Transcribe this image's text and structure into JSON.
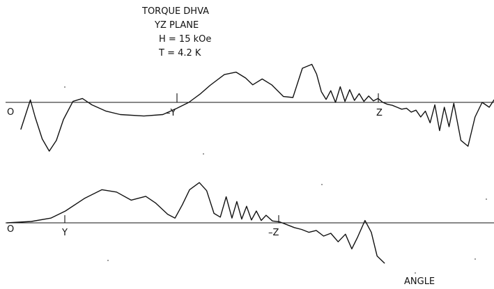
{
  "chart_data": {
    "type": "line",
    "title_lines": [
      "TORQUE DHVA",
      "YZ  PLANE",
      "H = 15 kOe",
      "T = 4.2 K"
    ],
    "xlabel": "ANGLE",
    "ylabel": "",
    "grid": false,
    "panels": [
      {
        "name": "",
        "tick_labels": [
          "O",
          "–Y",
          "Z"
        ],
        "series": [
          {
            "name": "",
            "points": [
              [
                0.0,
                -0.55
              ],
              [
                0.02,
                0.05
              ],
              [
                0.03,
                -0.3
              ],
              [
                0.045,
                -0.75
              ],
              [
                0.06,
                -1.0
              ],
              [
                0.075,
                -0.78
              ],
              [
                0.09,
                -0.35
              ],
              [
                0.11,
                0.02
              ],
              [
                0.13,
                0.08
              ],
              [
                0.15,
                -0.05
              ],
              [
                0.18,
                -0.18
              ],
              [
                0.21,
                -0.25
              ],
              [
                0.26,
                -0.28
              ],
              [
                0.3,
                -0.25
              ],
              [
                0.33,
                -0.12
              ],
              [
                0.355,
                0.0
              ],
              [
                0.38,
                0.18
              ],
              [
                0.4,
                0.35
              ],
              [
                0.43,
                0.57
              ],
              [
                0.455,
                0.62
              ],
              [
                0.475,
                0.5
              ],
              [
                0.49,
                0.36
              ],
              [
                0.51,
                0.48
              ],
              [
                0.53,
                0.36
              ],
              [
                0.555,
                0.12
              ],
              [
                0.575,
                0.1
              ],
              [
                0.595,
                0.7
              ],
              [
                0.615,
                0.78
              ],
              [
                0.625,
                0.58
              ],
              [
                0.635,
                0.22
              ],
              [
                0.645,
                0.06
              ],
              [
                0.655,
                0.24
              ],
              [
                0.665,
                0.0
              ],
              [
                0.675,
                0.32
              ],
              [
                0.685,
                0.02
              ],
              [
                0.695,
                0.26
              ],
              [
                0.705,
                0.04
              ],
              [
                0.715,
                0.18
              ],
              [
                0.725,
                0.02
              ],
              [
                0.735,
                0.13
              ],
              [
                0.745,
                0.03
              ],
              [
                0.755,
                0.08
              ],
              [
                0.765,
                0.0
              ],
              [
                0.775,
                -0.04
              ],
              [
                0.785,
                -0.06
              ],
              [
                0.795,
                -0.1
              ],
              [
                0.805,
                -0.14
              ],
              [
                0.815,
                -0.12
              ],
              [
                0.825,
                -0.2
              ],
              [
                0.835,
                -0.16
              ],
              [
                0.845,
                -0.3
              ],
              [
                0.855,
                -0.18
              ],
              [
                0.865,
                -0.42
              ],
              [
                0.875,
                -0.05
              ],
              [
                0.885,
                -0.58
              ],
              [
                0.895,
                -0.1
              ],
              [
                0.905,
                -0.5
              ],
              [
                0.915,
                -0.02
              ],
              [
                0.93,
                -0.78
              ],
              [
                0.945,
                -0.9
              ],
              [
                0.96,
                -0.3
              ],
              [
                0.975,
                0.0
              ],
              [
                0.99,
                -0.1
              ],
              [
                1.0,
                0.05
              ]
            ]
          }
        ]
      },
      {
        "name": "",
        "tick_labels": [
          "O",
          "Y",
          "–Z"
        ],
        "series": [
          {
            "name": "",
            "points": [
              [
                0.0,
                0.0
              ],
              [
                0.05,
                0.03
              ],
              [
                0.09,
                0.1
              ],
              [
                0.12,
                0.25
              ],
              [
                0.16,
                0.52
              ],
              [
                0.195,
                0.7
              ],
              [
                0.225,
                0.65
              ],
              [
                0.255,
                0.48
              ],
              [
                0.285,
                0.56
              ],
              [
                0.305,
                0.42
              ],
              [
                0.33,
                0.18
              ],
              [
                0.345,
                0.1
              ],
              [
                0.36,
                0.38
              ],
              [
                0.375,
                0.7
              ],
              [
                0.395,
                0.85
              ],
              [
                0.41,
                0.68
              ],
              [
                0.425,
                0.2
              ],
              [
                0.438,
                0.12
              ],
              [
                0.45,
                0.55
              ],
              [
                0.462,
                0.1
              ],
              [
                0.472,
                0.45
              ],
              [
                0.482,
                0.08
              ],
              [
                0.492,
                0.35
              ],
              [
                0.502,
                0.06
              ],
              [
                0.512,
                0.25
              ],
              [
                0.522,
                0.05
              ],
              [
                0.532,
                0.16
              ],
              [
                0.545,
                0.04
              ],
              [
                0.56,
                0.02
              ],
              [
                0.575,
                -0.04
              ],
              [
                0.59,
                -0.1
              ],
              [
                0.605,
                -0.14
              ],
              [
                0.62,
                -0.2
              ],
              [
                0.635,
                -0.16
              ],
              [
                0.65,
                -0.28
              ],
              [
                0.665,
                -0.22
              ],
              [
                0.68,
                -0.4
              ],
              [
                0.695,
                -0.24
              ],
              [
                0.708,
                -0.55
              ],
              [
                0.72,
                -0.3
              ],
              [
                0.735,
                0.05
              ],
              [
                0.748,
                -0.2
              ],
              [
                0.76,
                -0.7
              ],
              [
                0.775,
                -0.85
              ]
            ]
          }
        ]
      }
    ]
  }
}
